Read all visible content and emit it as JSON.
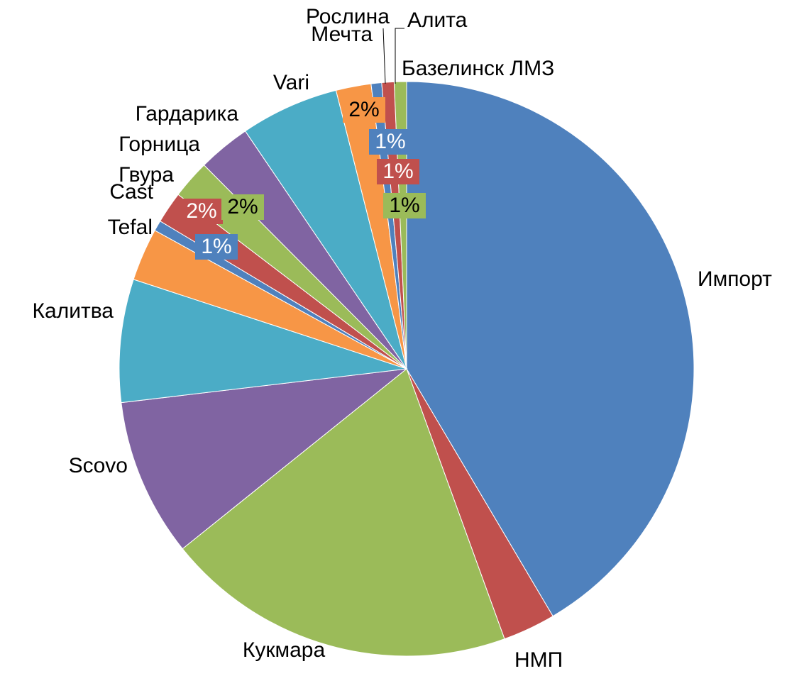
{
  "chart_data": {
    "type": "pie",
    "categories": [
      "Импорт",
      "НМП",
      "Кукмара",
      "Scovo",
      "Калитва",
      "Tefal",
      "Cast",
      "Гвура",
      "Горница",
      "Гардарика",
      "Vari",
      "Мечта",
      "Рослина",
      "Алита",
      "Базелинск ЛМЗ"
    ],
    "values": [
      42,
      3,
      20,
      9,
      7,
      3,
      0.6,
      1.8,
      2.2,
      3,
      5.6,
      2,
      0.6,
      0.7,
      0.7
    ],
    "value_labels": [
      null,
      null,
      null,
      null,
      null,
      null,
      "1%",
      "2%",
      "2%",
      null,
      null,
      "2%",
      "1%",
      "1%",
      "1%"
    ],
    "colors": [
      "#4f81bd",
      "#c0504d",
      "#9bbb59",
      "#8064a2",
      "#4bacc6",
      "#f79646",
      "#4f81bd",
      "#c0504d",
      "#9bbb59",
      "#8064a2",
      "#4bacc6",
      "#f79646",
      "#4f81bd",
      "#c0504d",
      "#9bbb59"
    ]
  }
}
